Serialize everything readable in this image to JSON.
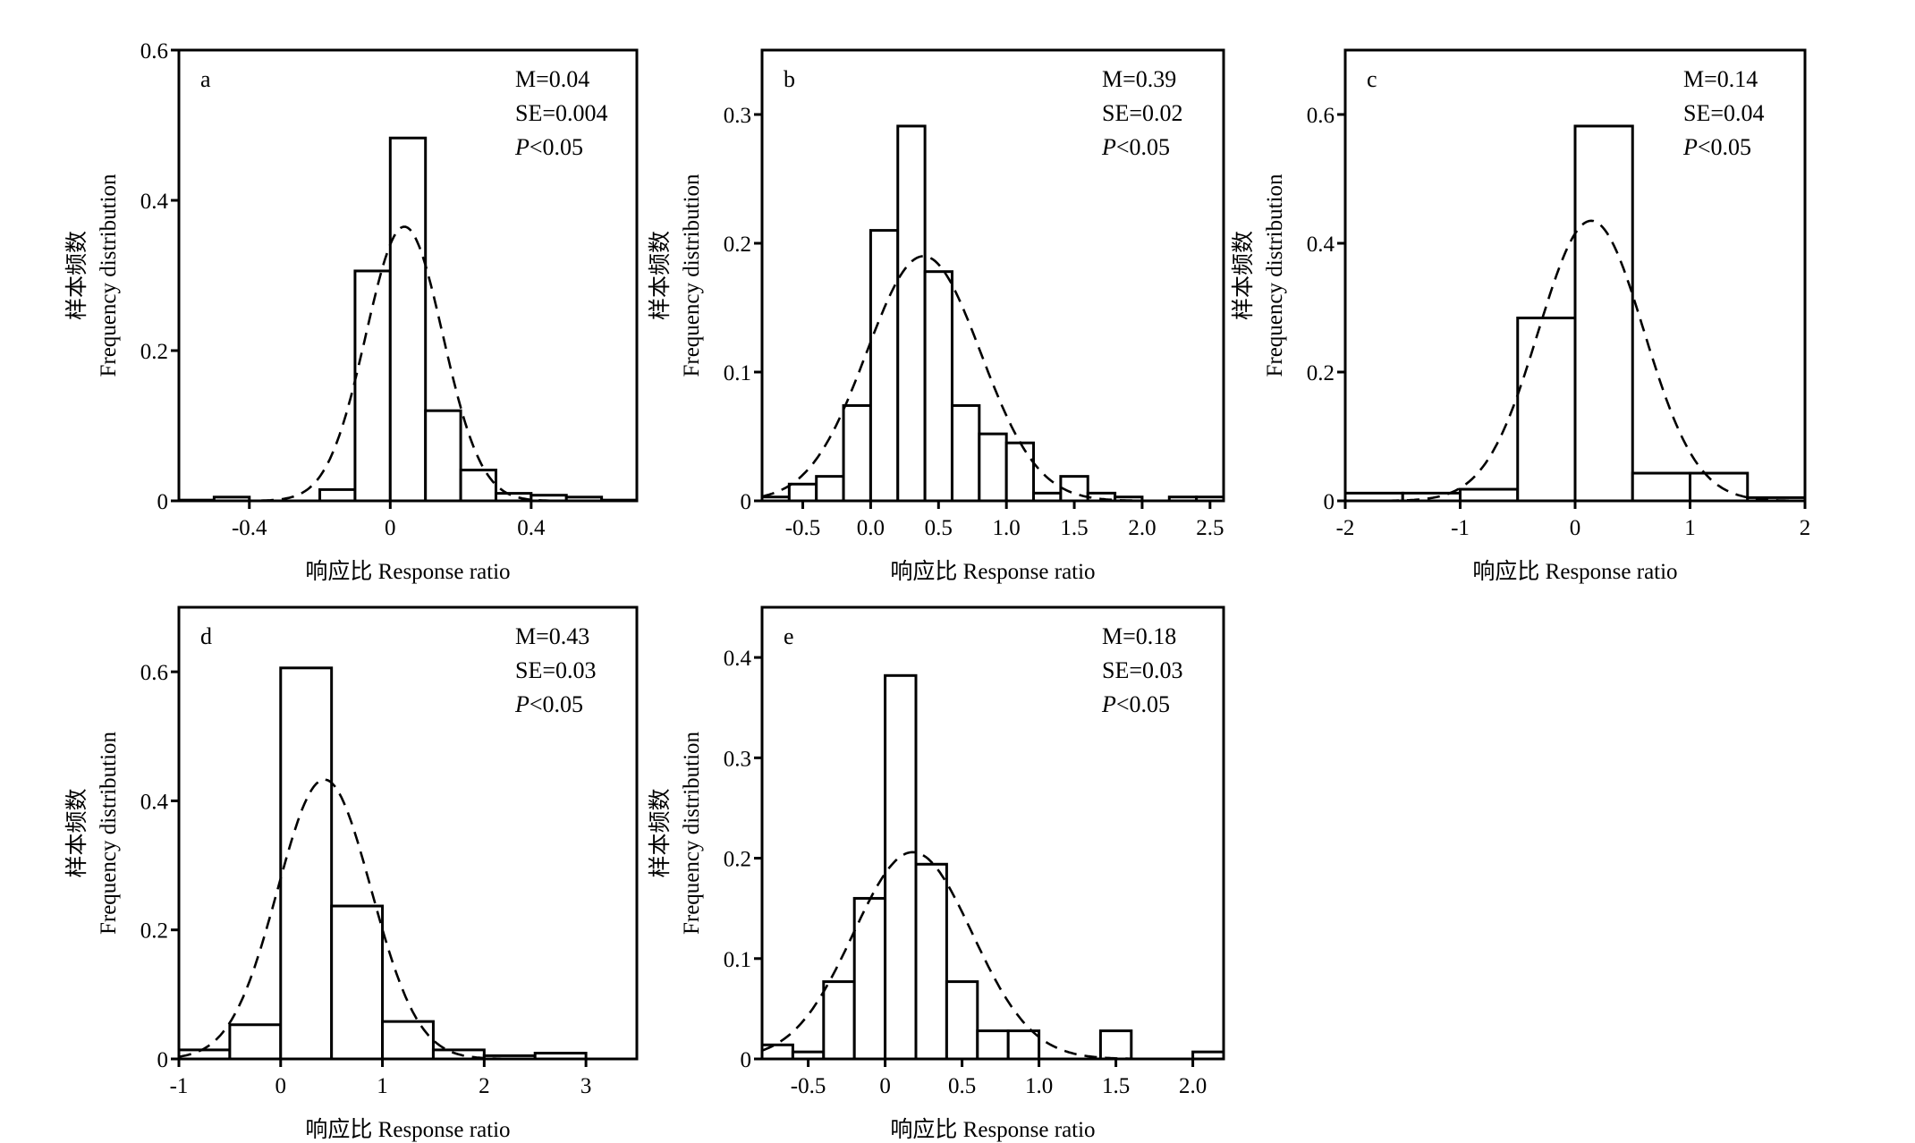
{
  "chart_data": [
    {
      "type": "bar",
      "panel_label": "a",
      "title": "",
      "xlabel": "响应比 Response ratio",
      "ylabel_cn": "样本频数",
      "ylabel": "Frequency distribution",
      "xlim": [
        -0.6,
        0.7
      ],
      "ylim": [
        0,
        0.6
      ],
      "xticks": [
        -0.4,
        0,
        0.4
      ],
      "xtick_labels": [
        "-0.4",
        "0",
        "0.4"
      ],
      "yticks": [
        0,
        0.2,
        0.4,
        0.6
      ],
      "ytick_labels": [
        "0",
        "0.2",
        "0.4",
        "0.6"
      ],
      "bin_start": -0.6,
      "bin_width": 0.1,
      "values": [
        0.001,
        0.005,
        0,
        0,
        0.015,
        0.306,
        0.483,
        0.12,
        0.041,
        0.01,
        0.0075,
        0.005,
        0.001
      ],
      "normal_fit": {
        "mean": 0.04,
        "sd": 0.109,
        "peak": 0.365
      },
      "stats": {
        "m": "M=0.04",
        "se": "SE=0.004",
        "p_symbol": "P",
        "p_rest": "<0.05"
      }
    },
    {
      "type": "bar",
      "panel_label": "b",
      "title": "",
      "xlabel": "响应比 Response ratio",
      "ylabel_cn": "样本频数",
      "ylabel": "Frequency distribution",
      "xlim": [
        -0.8,
        2.6
      ],
      "ylim": [
        0,
        0.35
      ],
      "xticks": [
        -0.5,
        0,
        0.5,
        1.0,
        1.5,
        2.0,
        2.5
      ],
      "xtick_labels": [
        "-0.5",
        "0.0",
        "0.5",
        "1.0",
        "1.5",
        "2.0",
        "2.5"
      ],
      "yticks": [
        0,
        0.1,
        0.2,
        0.3
      ],
      "ytick_labels": [
        "0",
        "0.1",
        "0.2",
        "0.3"
      ],
      "bin_start": -0.8,
      "bin_width": 0.2,
      "values": [
        0.003,
        0.013,
        0.019,
        0.074,
        0.21,
        0.291,
        0.178,
        0.074,
        0.052,
        0.045,
        0.006,
        0.019,
        0.006,
        0.003,
        0,
        0.003,
        0.003
      ],
      "normal_fit": {
        "mean": 0.39,
        "sd": 0.42,
        "peak": 0.19
      },
      "stats": {
        "m": "M=0.39",
        "se": "SE=0.02",
        "p_symbol": "P",
        "p_rest": "<0.05"
      }
    },
    {
      "type": "bar",
      "panel_label": "c",
      "title": "",
      "xlabel": "响应比 Response ratio",
      "ylabel_cn": "样本频数",
      "ylabel": "Frequency distribution",
      "xlim": [
        -2,
        2
      ],
      "ylim": [
        0,
        0.7
      ],
      "xticks": [
        -2,
        -1,
        0,
        1,
        2
      ],
      "xtick_labels": [
        "-2",
        "-1",
        "0",
        "1",
        "2"
      ],
      "yticks": [
        0,
        0.2,
        0.4,
        0.6
      ],
      "ytick_labels": [
        "0",
        "0.2",
        "0.4",
        "0.6"
      ],
      "bin_start": -2,
      "bin_width": 0.5,
      "values": [
        0.012,
        0.012,
        0.018,
        0.284,
        0.582,
        0.043,
        0.043,
        0.005
      ],
      "normal_fit": {
        "mean": 0.14,
        "sd": 0.459,
        "peak": 0.435
      },
      "stats": {
        "m": "M=0.14",
        "se": "SE=0.04",
        "p_symbol": "P",
        "p_rest": "<0.05"
      }
    },
    {
      "type": "bar",
      "panel_label": "d",
      "title": "",
      "xlabel": "响应比 Response ratio",
      "ylabel_cn": "样本频数",
      "ylabel": "Frequency distribution",
      "xlim": [
        -1,
        3.5
      ],
      "ylim": [
        0,
        0.7
      ],
      "xticks": [
        -1,
        0,
        1,
        2,
        3
      ],
      "xtick_labels": [
        "-1",
        "0",
        "1",
        "2",
        "3"
      ],
      "yticks": [
        0,
        0.2,
        0.4,
        0.6
      ],
      "ytick_labels": [
        "0",
        "0.2",
        "0.4",
        "0.6"
      ],
      "bin_start": -1,
      "bin_width": 0.5,
      "values": [
        0.014,
        0.053,
        0.606,
        0.237,
        0.058,
        0.014,
        0.005,
        0.009,
        0
      ],
      "normal_fit": {
        "mean": 0.43,
        "sd": 0.46,
        "peak": 0.433
      },
      "stats": {
        "m": "M=0.43",
        "se": "SE=0.03",
        "p_symbol": "P",
        "p_rest": "<0.05"
      }
    },
    {
      "type": "bar",
      "panel_label": "e",
      "title": "",
      "xlabel": "响应比 Response ratio",
      "ylabel_cn": "样本频数",
      "ylabel": "Frequency distribution",
      "xlim": [
        -0.8,
        2.2
      ],
      "ylim": [
        0,
        0.45
      ],
      "xticks": [
        -0.5,
        0,
        0.5,
        1.0,
        1.5,
        2.0
      ],
      "xtick_labels": [
        "-0.5",
        "0",
        "0.5",
        "1.0",
        "1.5",
        "2.0"
      ],
      "yticks": [
        0,
        0.1,
        0.2,
        0.3,
        0.4
      ],
      "ytick_labels": [
        "0",
        "0.1",
        "0.2",
        "0.3",
        "0.4"
      ],
      "bin_start": -0.8,
      "bin_width": 0.2,
      "values": [
        0.014,
        0.007,
        0.077,
        0.16,
        0.382,
        0.194,
        0.077,
        0.028,
        0.028,
        0,
        0,
        0.028,
        0,
        0,
        0.007
      ],
      "normal_fit": {
        "mean": 0.18,
        "sd": 0.387,
        "peak": 0.206
      },
      "stats": {
        "m": "M=0.18",
        "se": "SE=0.03",
        "p_symbol": "P",
        "p_rest": "<0.05"
      }
    }
  ]
}
